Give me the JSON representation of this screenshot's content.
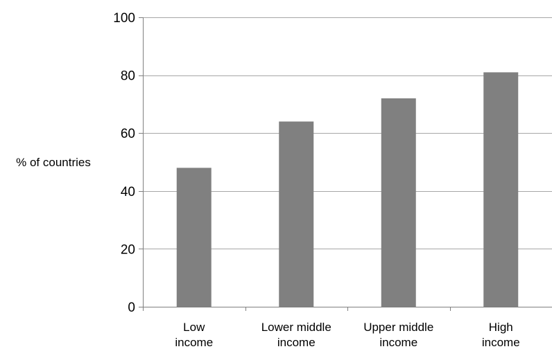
{
  "chart_data": {
    "type": "bar",
    "title": "",
    "xlabel": "",
    "ylabel": "% of countries",
    "categories": [
      [
        "Low",
        "income"
      ],
      [
        "Lower middle",
        "income"
      ],
      [
        "Upper middle",
        "income"
      ],
      [
        "High",
        "income"
      ]
    ],
    "values": [
      48,
      64,
      72,
      81
    ],
    "ylim": [
      0,
      100
    ],
    "yticks": [
      "0",
      "20",
      "40",
      "60",
      "80",
      "100"
    ],
    "grid": true,
    "legend": "none",
    "colors": {
      "bar": "#808080",
      "grid": "#a6a6a6",
      "axis": "#7f7f7f"
    }
  }
}
